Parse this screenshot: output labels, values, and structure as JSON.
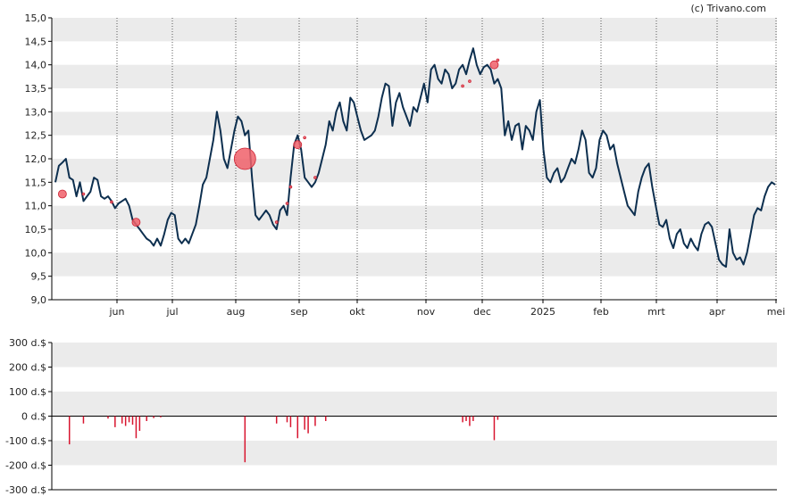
{
  "credit": "(c) Trivano.com",
  "colors": {
    "band": "#ebebeb",
    "line": "#0d2f4f",
    "bubble": "#f0606a",
    "bubble_stroke": "#cc2233",
    "volume_bar": "#d8152f",
    "axis": "#000000"
  },
  "chart_data": [
    {
      "type": "line",
      "title": "",
      "xlabel": "",
      "ylabel": "",
      "ylim": [
        9.0,
        15.0
      ],
      "y_ticks": [
        "9,0",
        "9,5",
        "10,0",
        "10,5",
        "11,0",
        "11,5",
        "12,0",
        "12,5",
        "13,0",
        "13,5",
        "14,0",
        "14,5",
        "15,0"
      ],
      "x_ticks": [
        "jun",
        "jul",
        "aug",
        "sep",
        "okt",
        "nov",
        "dec",
        "2025",
        "feb",
        "mrt",
        "apr",
        "mei"
      ],
      "grid": "horizontal bands, dotted vertical month lines",
      "series": [
        {
          "values": [
            11.5,
            11.85,
            11.92,
            12.0,
            11.6,
            11.55,
            11.2,
            11.5,
            11.1,
            11.2,
            11.3,
            11.6,
            11.55,
            11.2,
            11.15,
            11.2,
            11.1,
            10.95,
            11.05,
            11.1,
            11.15,
            11.0,
            10.7,
            10.6,
            10.5,
            10.4,
            10.3,
            10.25,
            10.15,
            10.3,
            10.15,
            10.4,
            10.7,
            10.85,
            10.8,
            10.3,
            10.2,
            10.3,
            10.2,
            10.4,
            10.6,
            11.0,
            11.45,
            11.6,
            12.0,
            12.4,
            13.0,
            12.6,
            12.0,
            11.8,
            12.2,
            12.6,
            12.9,
            12.8,
            12.5,
            12.6,
            11.6,
            10.8,
            10.7,
            10.8,
            10.9,
            10.8,
            10.6,
            10.5,
            10.9,
            11.0,
            10.8,
            11.6,
            12.3,
            12.5,
            12.2,
            11.6,
            11.5,
            11.4,
            11.5,
            11.7,
            12.0,
            12.3,
            12.8,
            12.6,
            13.0,
            13.2,
            12.8,
            12.6,
            13.3,
            13.2,
            12.9,
            12.6,
            12.4,
            12.45,
            12.5,
            12.6,
            12.9,
            13.3,
            13.6,
            13.55,
            12.7,
            13.2,
            13.4,
            13.1,
            12.9,
            12.7,
            13.1,
            13.0,
            13.3,
            13.6,
            13.2,
            13.9,
            14.0,
            13.7,
            13.6,
            13.9,
            13.8,
            13.5,
            13.6,
            13.9,
            14.0,
            13.8,
            14.1,
            14.35,
            14.0,
            13.8,
            13.95,
            14.0,
            13.9,
            13.6,
            13.7,
            13.5,
            12.5,
            12.8,
            12.4,
            12.7,
            12.75,
            12.2,
            12.7,
            12.6,
            12.4,
            13.0,
            13.25,
            12.2,
            11.6,
            11.5,
            11.7,
            11.8,
            11.5,
            11.6,
            11.8,
            12.0,
            11.9,
            12.2,
            12.6,
            12.4,
            11.7,
            11.6,
            11.8,
            12.4,
            12.6,
            12.5,
            12.2,
            12.3,
            11.9,
            11.6,
            11.3,
            11.0,
            10.9,
            10.8,
            11.3,
            11.6,
            11.8,
            11.9,
            11.4,
            11.0,
            10.6,
            10.55,
            10.7,
            10.3,
            10.1,
            10.4,
            10.5,
            10.2,
            10.1,
            10.3,
            10.15,
            10.05,
            10.4,
            10.6,
            10.65,
            10.55,
            10.2,
            9.85,
            9.75,
            9.7,
            10.5,
            10.0,
            9.85,
            9.9,
            9.75,
            10.0,
            10.4,
            10.8,
            10.95,
            10.9,
            11.2,
            11.4,
            11.5,
            11.45
          ]
        }
      ],
      "bubbles": [
        {
          "index": 2,
          "value": 11.25,
          "size": 3
        },
        {
          "index": 8,
          "value": 11.25,
          "size": 1
        },
        {
          "index": 16,
          "value": 11.08,
          "size": 1
        },
        {
          "index": 23,
          "value": 10.65,
          "size": 3
        },
        {
          "index": 54,
          "value": 12.0,
          "size": 8
        },
        {
          "index": 63,
          "value": 10.65,
          "size": 1
        },
        {
          "index": 66,
          "value": 11.05,
          "size": 1
        },
        {
          "index": 67,
          "value": 11.4,
          "size": 1
        },
        {
          "index": 69,
          "value": 12.3,
          "size": 3
        },
        {
          "index": 71,
          "value": 12.45,
          "size": 1
        },
        {
          "index": 74,
          "value": 11.6,
          "size": 1
        },
        {
          "index": 116,
          "value": 13.55,
          "size": 1
        },
        {
          "index": 118,
          "value": 13.65,
          "size": 1
        },
        {
          "index": 125,
          "value": 14.0,
          "size": 3
        },
        {
          "index": 126,
          "value": 14.1,
          "size": 1
        }
      ]
    },
    {
      "type": "bar",
      "title": "",
      "xlabel": "",
      "ylabel": "",
      "ylim": [
        -300,
        300
      ],
      "y_ticks": [
        "-300 d.$",
        "-200 d.$",
        "-100 d.$",
        "0 d.$",
        "100 d.$",
        "200 d.$",
        "300 d.$"
      ],
      "y_unit": "d.$",
      "bars": [
        {
          "index": 4,
          "value": -115
        },
        {
          "index": 8,
          "value": -30
        },
        {
          "index": 15,
          "value": -10
        },
        {
          "index": 17,
          "value": -45
        },
        {
          "index": 19,
          "value": -30
        },
        {
          "index": 20,
          "value": -40
        },
        {
          "index": 21,
          "value": -25
        },
        {
          "index": 22,
          "value": -35
        },
        {
          "index": 23,
          "value": -90
        },
        {
          "index": 24,
          "value": -60
        },
        {
          "index": 26,
          "value": -20
        },
        {
          "index": 28,
          "value": -8
        },
        {
          "index": 30,
          "value": -5
        },
        {
          "index": 54,
          "value": -188
        },
        {
          "index": 63,
          "value": -30
        },
        {
          "index": 66,
          "value": -25
        },
        {
          "index": 67,
          "value": -45
        },
        {
          "index": 69,
          "value": -90
        },
        {
          "index": 71,
          "value": -55
        },
        {
          "index": 72,
          "value": -70
        },
        {
          "index": 74,
          "value": -40
        },
        {
          "index": 77,
          "value": -20
        },
        {
          "index": 116,
          "value": -25
        },
        {
          "index": 117,
          "value": -20
        },
        {
          "index": 118,
          "value": -40
        },
        {
          "index": 119,
          "value": -20
        },
        {
          "index": 125,
          "value": -98
        },
        {
          "index": 126,
          "value": -15
        }
      ]
    }
  ]
}
